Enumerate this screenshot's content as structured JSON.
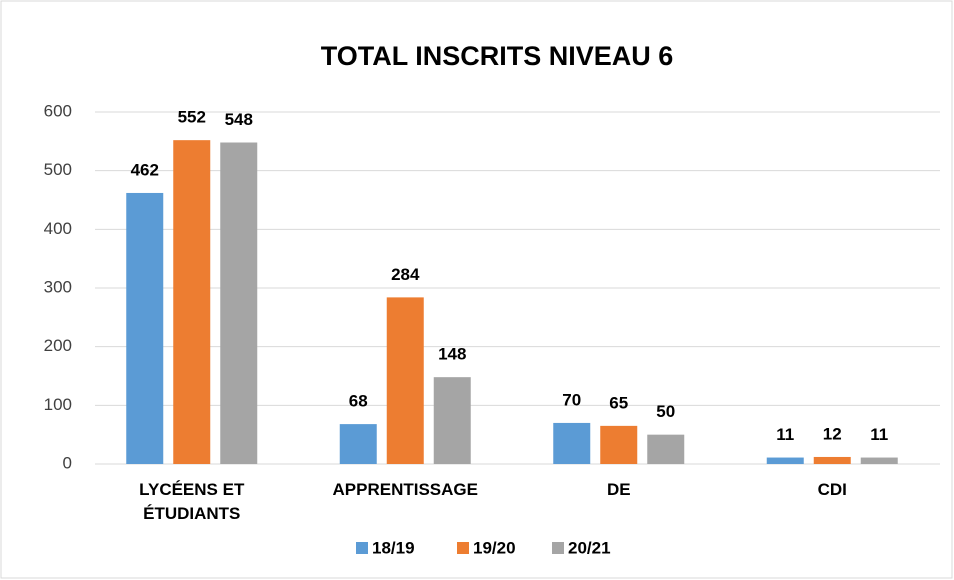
{
  "chart_data": {
    "type": "bar",
    "title": "TOTAL INSCRITS NIVEAU 6",
    "categories": [
      "LYCÉENS ET ÉTUDIANTS",
      "APPRENTISSAGE",
      "DE",
      "CDI"
    ],
    "series": [
      {
        "name": "18/19",
        "color": "#5b9bd5",
        "values": [
          462,
          68,
          70,
          11
        ]
      },
      {
        "name": "19/20",
        "color": "#ed7d31",
        "values": [
          552,
          284,
          65,
          12
        ]
      },
      {
        "name": "20/21",
        "color": "#a5a5a5",
        "values": [
          548,
          148,
          50,
          11
        ]
      }
    ],
    "ylim": [
      0,
      600
    ],
    "yticks": [
      0,
      100,
      200,
      300,
      400,
      500,
      600
    ],
    "grid": true,
    "legend": "bottom"
  }
}
